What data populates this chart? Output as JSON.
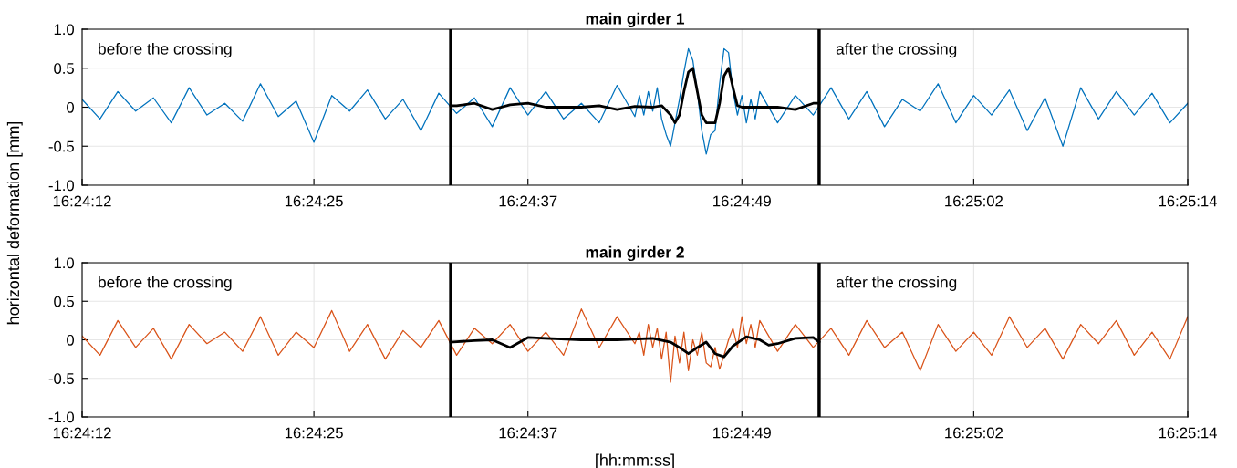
{
  "chart_data": [
    {
      "type": "line",
      "title": "main girder 1",
      "ylabel": "horizontal deformation [mm]",
      "x": [
        16.403333,
        16.403611,
        16.403889,
        16.404167,
        16.404444,
        16.404722,
        16.405,
        16.405278,
        16.405556,
        16.405833,
        16.406111,
        16.406389,
        16.406667,
        16.406944,
        16.407222,
        16.4075,
        16.407778,
        16.408056,
        16.408333,
        16.408611,
        16.408889,
        16.409167,
        16.409444,
        16.409722,
        16.41,
        16.410278,
        16.410556,
        16.410833,
        16.411111,
        16.411389,
        16.411667,
        16.411944,
        16.412014,
        16.412083,
        16.412153,
        16.412222,
        16.412292,
        16.412361,
        16.412431,
        16.4125,
        16.412569,
        16.412639,
        16.412708,
        16.412778,
        16.412847,
        16.412917,
        16.412986,
        16.413056,
        16.413125,
        16.413194,
        16.413264,
        16.413333,
        16.413403,
        16.413472,
        16.413542,
        16.413611,
        16.413681,
        16.41375,
        16.413819,
        16.413889,
        16.414167,
        16.414444,
        16.414722,
        16.415,
        16.415278,
        16.415556,
        16.415833,
        16.416111,
        16.416389,
        16.416667,
        16.416944,
        16.417222,
        16.4175,
        16.417778,
        16.418056,
        16.418333,
        16.418611,
        16.418889,
        16.419167,
        16.419444,
        16.419722,
        16.42,
        16.420278,
        16.420556
      ],
      "series": [
        {
          "color": "#0072bd",
          "values": [
            0.1,
            -0.15,
            0.2,
            -0.05,
            0.12,
            -0.2,
            0.25,
            -0.1,
            0.05,
            -0.18,
            0.3,
            -0.12,
            0.08,
            -0.45,
            0.15,
            -0.05,
            0.22,
            -0.15,
            0.1,
            -0.3,
            0.18,
            -0.08,
            0.12,
            -0.25,
            0.25,
            -0.1,
            0.2,
            -0.15,
            0.05,
            -0.2,
            0.28,
            -0.12,
            0.15,
            -0.1,
            0.2,
            -0.05,
            0.25,
            -0.15,
            -0.35,
            -0.5,
            -0.2,
            0.1,
            0.45,
            0.75,
            0.6,
            0.2,
            -0.3,
            -0.6,
            -0.35,
            -0.3,
            0.3,
            0.75,
            0.7,
            0.2,
            -0.1,
            0.15,
            -0.2,
            0.1,
            -0.15,
            0.2,
            -0.2,
            0.15,
            -0.1,
            0.25,
            -0.15,
            0.2,
            -0.25,
            0.1,
            -0.05,
            0.3,
            -0.2,
            0.15,
            -0.1,
            0.22,
            -0.3,
            0.12,
            -0.5,
            0.25,
            -0.15,
            0.2,
            -0.1,
            0.18,
            -0.2,
            0.05
          ]
        },
        {
          "color": "#000000",
          "x": [
            16.409075,
            16.409167,
            16.409444,
            16.409722,
            16.41,
            16.410278,
            16.410556,
            16.410833,
            16.411111,
            16.411389,
            16.411667,
            16.411944,
            16.412222,
            16.412361,
            16.4125,
            16.412569,
            16.412639,
            16.412708,
            16.412778,
            16.412847,
            16.412917,
            16.412986,
            16.413056,
            16.413125,
            16.413194,
            16.413264,
            16.413333,
            16.413403,
            16.413472,
            16.413542,
            16.413611,
            16.413889,
            16.414167,
            16.414444,
            16.414722,
            16.414814
          ],
          "values": [
            0.02,
            0.02,
            0.05,
            -0.03,
            0.03,
            0.05,
            0.0,
            0.0,
            0.0,
            0.02,
            -0.03,
            0.01,
            0.0,
            0.02,
            -0.1,
            -0.2,
            -0.1,
            0.2,
            0.45,
            0.5,
            0.2,
            -0.1,
            -0.2,
            -0.2,
            -0.2,
            0.05,
            0.4,
            0.5,
            0.25,
            0.02,
            0.0,
            0.0,
            0.0,
            -0.03,
            0.05,
            0.05
          ]
        }
      ],
      "xlim": [
        16.403333,
        16.420556
      ],
      "xticks": [
        {
          "value": 16.403333,
          "label": "16:24:12"
        },
        {
          "value": 16.406944,
          "label": "16:24:25"
        },
        {
          "value": 16.410278,
          "label": "16:24:37"
        },
        {
          "value": 16.413611,
          "label": "16:24:49"
        },
        {
          "value": 16.417222,
          "label": "16:25:02"
        },
        {
          "value": 16.420556,
          "label": "16:25:14"
        }
      ],
      "ylim": [
        -1,
        1
      ],
      "yticks": [
        {
          "value": -1,
          "label": "-1.0"
        },
        {
          "value": -0.5,
          "label": "-0.5"
        },
        0,
        {
          "value": 0.5,
          "label": "0.5"
        },
        {
          "value": 1,
          "label": "1.0"
        }
      ],
      "ref_lines": [
        {
          "axis": "x",
          "value": 16.409075,
          "color": "#000000"
        },
        {
          "axis": "x",
          "value": 16.414814,
          "color": "#000000"
        }
      ],
      "annotations": [
        "before the crossing",
        "after the crossing"
      ],
      "grid": true,
      "line_style": "solid",
      "marker": "none"
    },
    {
      "type": "line",
      "title": "main girder 2",
      "xlabel": "[hh:mm:ss]",
      "x": [
        16.403333,
        16.403611,
        16.403889,
        16.404167,
        16.404444,
        16.404722,
        16.405,
        16.405278,
        16.405556,
        16.405833,
        16.406111,
        16.406389,
        16.406667,
        16.406944,
        16.407222,
        16.4075,
        16.407778,
        16.408056,
        16.408333,
        16.408611,
        16.408889,
        16.409167,
        16.409444,
        16.409722,
        16.41,
        16.410278,
        16.410556,
        16.410833,
        16.411111,
        16.411389,
        16.411667,
        16.411944,
        16.412014,
        16.412083,
        16.412153,
        16.412222,
        16.412292,
        16.412361,
        16.412431,
        16.4125,
        16.412569,
        16.412639,
        16.412708,
        16.412778,
        16.412847,
        16.412917,
        16.412986,
        16.413056,
        16.413125,
        16.413194,
        16.413264,
        16.413333,
        16.413403,
        16.413472,
        16.413542,
        16.413611,
        16.413681,
        16.41375,
        16.413819,
        16.413889,
        16.414167,
        16.414444,
        16.414722,
        16.415,
        16.415278,
        16.415556,
        16.415833,
        16.416111,
        16.416389,
        16.416667,
        16.416944,
        16.417222,
        16.4175,
        16.417778,
        16.418056,
        16.418333,
        16.418611,
        16.418889,
        16.419167,
        16.419444,
        16.419722,
        16.42,
        16.420278,
        16.420556
      ],
      "series": [
        {
          "color": "#d95319",
          "values": [
            0.05,
            -0.2,
            0.25,
            -0.1,
            0.15,
            -0.25,
            0.2,
            -0.05,
            0.1,
            -0.15,
            0.3,
            -0.2,
            0.1,
            -0.1,
            0.38,
            -0.15,
            0.2,
            -0.25,
            0.12,
            -0.1,
            0.25,
            -0.2,
            0.15,
            -0.05,
            0.2,
            -0.15,
            0.1,
            -0.2,
            0.4,
            -0.1,
            0.3,
            -0.05,
            0.1,
            -0.2,
            0.2,
            -0.1,
            0.15,
            -0.25,
            0.1,
            -0.55,
            0.05,
            -0.3,
            0.1,
            -0.4,
            0.0,
            -0.2,
            0.1,
            -0.3,
            -0.35,
            -0.1,
            -0.38,
            -0.2,
            0.0,
            0.15,
            -0.1,
            0.3,
            -0.05,
            0.2,
            -0.1,
            0.25,
            -0.15,
            0.2,
            -0.1,
            0.15,
            -0.2,
            0.25,
            -0.1,
            0.1,
            -0.4,
            0.2,
            -0.15,
            0.1,
            -0.2,
            0.3,
            -0.1,
            0.15,
            -0.25,
            0.2,
            -0.05,
            0.25,
            -0.2,
            0.1,
            -0.25,
            0.3
          ]
        },
        {
          "color": "#000000",
          "x": [
            16.409075,
            16.409444,
            16.409722,
            16.41,
            16.410278,
            16.410556,
            16.411111,
            16.411667,
            16.412222,
            16.4125,
            16.412639,
            16.412778,
            16.412917,
            16.413056,
            16.413194,
            16.413333,
            16.413472,
            16.413681,
            16.413889,
            16.414028,
            16.414167,
            16.414444,
            16.414722,
            16.414814
          ],
          "values": [
            -0.03,
            -0.01,
            0.0,
            -0.1,
            0.03,
            0.02,
            0.0,
            0.0,
            0.02,
            -0.03,
            -0.1,
            -0.18,
            -0.1,
            -0.03,
            -0.18,
            -0.22,
            -0.08,
            0.04,
            0.0,
            -0.07,
            -0.05,
            0.02,
            0.03,
            -0.03
          ]
        }
      ],
      "xlim": [
        16.403333,
        16.420556
      ],
      "xticks": [
        {
          "value": 16.403333,
          "label": "16:24:12"
        },
        {
          "value": 16.406944,
          "label": "16:24:25"
        },
        {
          "value": 16.410278,
          "label": "16:24:37"
        },
        {
          "value": 16.413611,
          "label": "16:24:49"
        },
        {
          "value": 16.417222,
          "label": "16:25:02"
        },
        {
          "value": 16.420556,
          "label": "16:25:14"
        }
      ],
      "ylim": [
        -1,
        1
      ],
      "yticks": [
        {
          "value": -1,
          "label": "-1.0"
        },
        {
          "value": -0.5,
          "label": "-0.5"
        },
        0,
        {
          "value": 0.5,
          "label": "0.5"
        },
        {
          "value": 1,
          "label": "1.0"
        }
      ],
      "ref_lines": [
        {
          "axis": "x",
          "value": 16.409075,
          "color": "#000000"
        },
        {
          "axis": "x",
          "value": 16.414814,
          "color": "#000000"
        }
      ],
      "annotations": [
        "before the crossing",
        "after the crossing"
      ],
      "grid": true,
      "line_style": "solid",
      "marker": "none"
    }
  ]
}
